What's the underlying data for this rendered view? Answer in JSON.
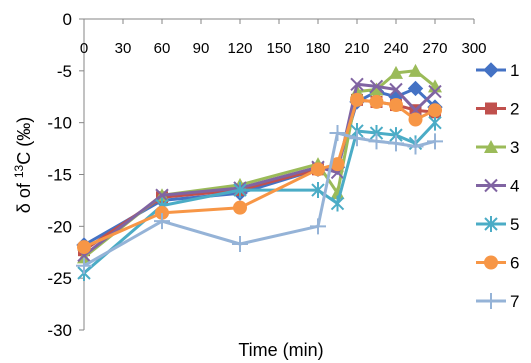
{
  "chart_data": {
    "type": "line",
    "xlabel": "Time (min)",
    "ylabel_parts": [
      "δ of ",
      "13",
      "C  (‰)"
    ],
    "xlim": [
      0,
      300
    ],
    "ylim": [
      -30,
      0
    ],
    "x_ticks": [
      0,
      30,
      60,
      90,
      120,
      150,
      180,
      210,
      240,
      270,
      300
    ],
    "y_ticks": [
      0,
      -5,
      -10,
      -15,
      -20,
      -25,
      -30
    ],
    "x_axis_position": "top",
    "grid": false,
    "legend_position": "right",
    "series": [
      {
        "name": "1",
        "color": "#4472C4",
        "marker": "diamond",
        "x": [
          0,
          60,
          120,
          180,
          195,
          210,
          225,
          240,
          255,
          270
        ],
        "y": [
          -21.8,
          -17.5,
          -16.8,
          -14.5,
          -14.3,
          -8.0,
          -7.0,
          -7.5,
          -6.7,
          -8.5
        ]
      },
      {
        "name": "2",
        "color": "#C0504D",
        "marker": "square",
        "x": [
          0,
          60,
          120,
          180,
          195,
          210,
          225,
          240,
          255,
          270
        ],
        "y": [
          -22.3,
          -17.2,
          -16.5,
          -14.5,
          -14.2,
          -7.8,
          -8.0,
          -8.3,
          -8.8,
          -9.0
        ]
      },
      {
        "name": "3",
        "color": "#9BBB59",
        "marker": "triangle",
        "x": [
          0,
          60,
          120,
          180,
          195,
          210,
          225,
          240,
          255,
          270
        ],
        "y": [
          -23.0,
          -17.0,
          -16.0,
          -14.0,
          -16.8,
          -7.0,
          -6.8,
          -5.2,
          -5.0,
          -6.5
        ]
      },
      {
        "name": "4",
        "color": "#8064A2",
        "marker": "x",
        "x": [
          0,
          60,
          120,
          180,
          195,
          210,
          225,
          240,
          255,
          270
        ],
        "y": [
          -22.8,
          -17.0,
          -16.3,
          -14.3,
          -14.8,
          -6.3,
          -6.5,
          -6.8,
          -8.8,
          -7.0
        ]
      },
      {
        "name": "5",
        "color": "#4BACC6",
        "marker": "star",
        "x": [
          0,
          60,
          120,
          180,
          195,
          210,
          225,
          240,
          255,
          270
        ],
        "y": [
          -24.5,
          -18.0,
          -16.5,
          -16.5,
          -17.8,
          -10.8,
          -11.0,
          -11.2,
          -12.0,
          -10.0
        ]
      },
      {
        "name": "6",
        "color": "#F79646",
        "marker": "circle",
        "x": [
          0,
          60,
          120,
          180,
          195,
          210,
          225,
          240,
          255,
          270
        ],
        "y": [
          -22.0,
          -18.7,
          -18.2,
          -14.5,
          -14.0,
          -7.8,
          -8.0,
          -8.3,
          -9.7,
          -8.8
        ]
      },
      {
        "name": "7",
        "color": "#95B3D7",
        "marker": "plus",
        "x": [
          0,
          60,
          120,
          180,
          195,
          210,
          225,
          240,
          255,
          270
        ],
        "y": [
          -23.8,
          -19.5,
          -21.7,
          -20.0,
          -11.0,
          -11.5,
          -11.8,
          -12.0,
          -12.3,
          -11.8
        ]
      }
    ]
  }
}
